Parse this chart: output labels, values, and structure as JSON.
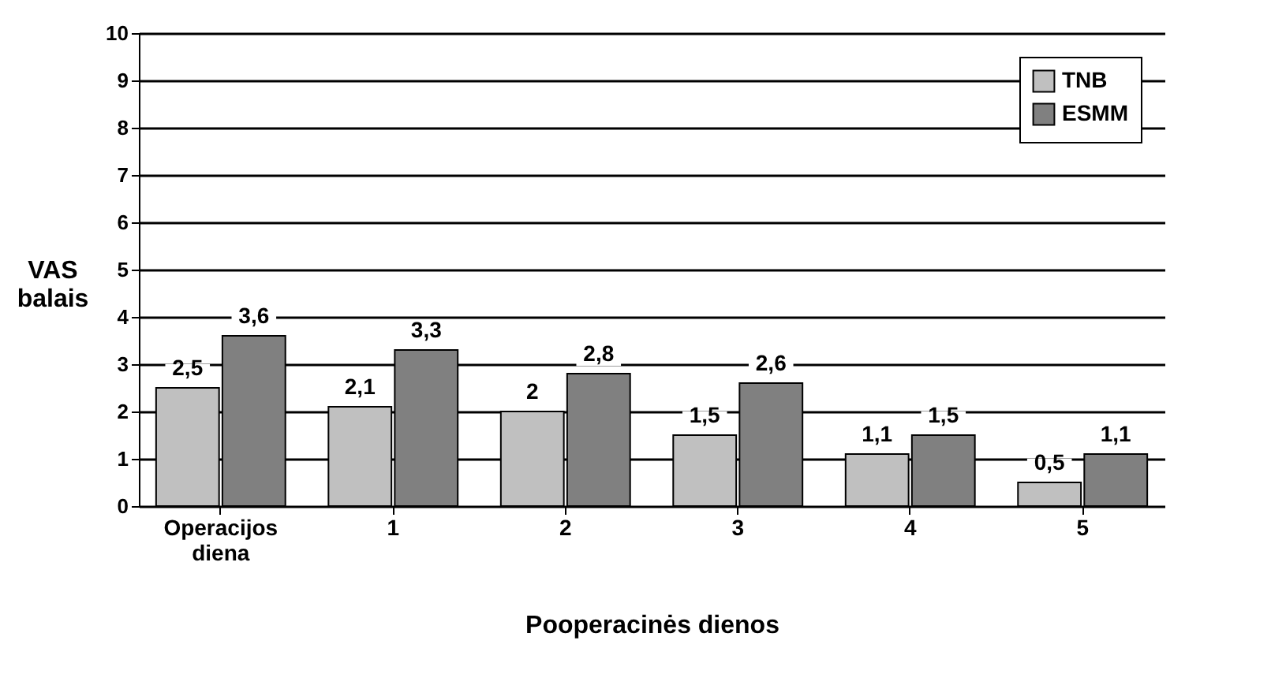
{
  "chart_data": {
    "type": "bar",
    "xlabel": "Pooperacinės dienos",
    "ylabel": "VAS balais",
    "categories": [
      "Operacijos diena",
      "1",
      "2",
      "3",
      "4",
      "5"
    ],
    "series": [
      {
        "name": "TNB",
        "color": "#c0c0c0",
        "values": [
          2.5,
          2.1,
          2,
          1.5,
          1.1,
          0.5
        ],
        "value_labels": [
          "2,5",
          "2,1",
          "2",
          "1,5",
          "1,1",
          "0,5"
        ]
      },
      {
        "name": "ESMM",
        "color": "#808080",
        "values": [
          3.6,
          3.3,
          2.8,
          2.6,
          1.5,
          1.1
        ],
        "value_labels": [
          "3,6",
          "3,3",
          "2,8",
          "2,6",
          "1,5",
          "1,1"
        ]
      }
    ],
    "ylim": [
      0,
      10
    ],
    "yticks": [
      0,
      1,
      2,
      3,
      4,
      5,
      6,
      7,
      8,
      9,
      10
    ],
    "grid": "y",
    "legend": "top right"
  }
}
